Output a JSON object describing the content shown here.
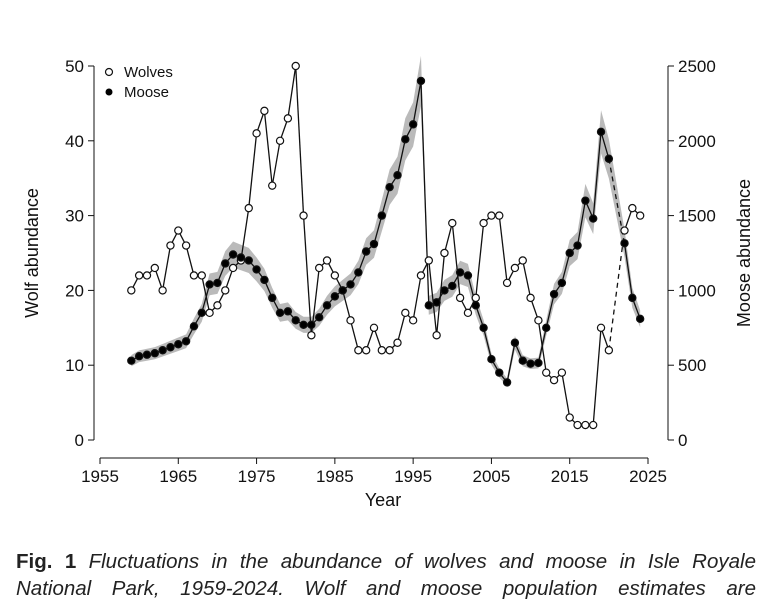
{
  "chart_data": {
    "type": "line",
    "xlabel": "Year",
    "ylabel_left": "Wolf abundance",
    "ylabel_right": "Moose abundance",
    "xlim": [
      1955,
      2025
    ],
    "ylim_left": [
      0,
      50
    ],
    "ylim_right": [
      0,
      2500
    ],
    "x_ticks": [
      "1955",
      "1965",
      "1975",
      "1985",
      "1995",
      "2005",
      "2015",
      "2025"
    ],
    "y_ticks_left": [
      "0",
      "10",
      "20",
      "30",
      "40",
      "50"
    ],
    "y_ticks_right": [
      "0",
      "500",
      "1000",
      "1500",
      "2000",
      "2500"
    ],
    "grid": false,
    "legend_position": "top-left",
    "series": [
      {
        "name": "Wolves",
        "axis": "left",
        "marker": "open-circle",
        "x": [
          1959,
          1960,
          1961,
          1962,
          1963,
          1964,
          1965,
          1966,
          1967,
          1968,
          1969,
          1970,
          1971,
          1972,
          1973,
          1974,
          1975,
          1976,
          1977,
          1978,
          1979,
          1980,
          1981,
          1982,
          1983,
          1984,
          1985,
          1986,
          1987,
          1988,
          1989,
          1990,
          1991,
          1992,
          1993,
          1994,
          1995,
          1996,
          1997,
          1998,
          1999,
          2000,
          2001,
          2002,
          2003,
          2004,
          2005,
          2006,
          2007,
          2008,
          2009,
          2010,
          2011,
          2012,
          2013,
          2014,
          2015,
          2016,
          2017,
          2018,
          2019,
          2020,
          2022,
          2023,
          2024
        ],
        "values": [
          20,
          22,
          22,
          23,
          20,
          26,
          28,
          26,
          22,
          22,
          17,
          18,
          20,
          23,
          24,
          31,
          41,
          44,
          34,
          40,
          43,
          50,
          30,
          14,
          23,
          24,
          22,
          20,
          16,
          12,
          12,
          15,
          12,
          12,
          13,
          17,
          16,
          22,
          24,
          14,
          25,
          29,
          19,
          17,
          19,
          29,
          30,
          30,
          21,
          23,
          24,
          19,
          16,
          9,
          8,
          9,
          3,
          2,
          2,
          2,
          15,
          12,
          28,
          31,
          30
        ]
      },
      {
        "name": "Moose",
        "axis": "right",
        "marker": "filled-circle",
        "x": [
          1959,
          1960,
          1961,
          1962,
          1963,
          1964,
          1965,
          1966,
          1967,
          1968,
          1969,
          1970,
          1971,
          1972,
          1973,
          1974,
          1975,
          1976,
          1977,
          1978,
          1979,
          1980,
          1981,
          1982,
          1983,
          1984,
          1985,
          1986,
          1987,
          1988,
          1989,
          1990,
          1991,
          1992,
          1993,
          1994,
          1995,
          1996,
          1997,
          1998,
          1999,
          2000,
          2001,
          2002,
          2003,
          2004,
          2005,
          2006,
          2007,
          2008,
          2009,
          2010,
          2011,
          2012,
          2013,
          2014,
          2015,
          2016,
          2017,
          2018,
          2019,
          2020,
          2022,
          2023,
          2024
        ],
        "values": [
          530,
          560,
          570,
          580,
          600,
          620,
          640,
          660,
          760,
          850,
          1040,
          1050,
          1180,
          1240,
          1220,
          1200,
          1140,
          1070,
          950,
          850,
          860,
          800,
          770,
          770,
          820,
          900,
          960,
          1000,
          1040,
          1120,
          1260,
          1310,
          1500,
          1690,
          1770,
          2010,
          2110,
          2400,
          900,
          920,
          1000,
          1030,
          1120,
          1100,
          900,
          750,
          540,
          450,
          385,
          650,
          530,
          510,
          515,
          750,
          975,
          1050,
          1250,
          1300,
          1600,
          1480,
          2060,
          1880,
          1315,
          950,
          810
        ],
        "confidence_band": true
      }
    ]
  },
  "caption": {
    "label": "Fig. 1",
    "line1": "Fluctuations in the abundance of wolves and moose in Isle Royale",
    "line2": "National Park, 1959-2024. Wolf and moose population estimates are"
  },
  "colors": {
    "axis": "#111111",
    "line": "#111111",
    "band": "#b3b3b3",
    "marker_fill_wolves": "#ffffff",
    "marker_fill_moose": "#000000"
  }
}
